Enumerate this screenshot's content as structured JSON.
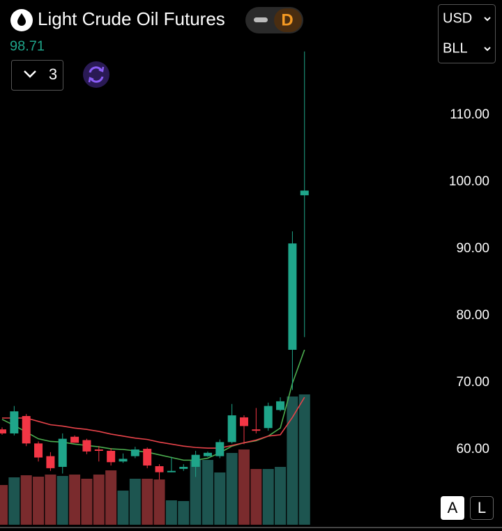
{
  "header": {
    "title": "Light Crude Oil Futures",
    "badge": "D",
    "price": "98.71",
    "interval_count": "3",
    "currency": "USD",
    "unit": "BLL",
    "buttons": [
      "A",
      "L"
    ]
  },
  "chart_data": {
    "type": "candlestick",
    "ylim": [
      48.75,
      127.19
    ],
    "yticks": [
      {
        "value": 60,
        "label": "60.00"
      },
      {
        "value": 70,
        "label": "70.00"
      },
      {
        "value": 80,
        "label": "80.00"
      },
      {
        "value": 90,
        "label": "90.00"
      },
      {
        "value": 100,
        "label": "100.00"
      },
      {
        "value": 110,
        "label": "110.00"
      }
    ],
    "up_color": "#1fa58a",
    "down_color": "#f23645",
    "open": [
      63.0,
      62.4,
      65.0,
      60.9,
      59.0,
      57.4,
      61.9,
      61.4,
      60.0,
      59.8,
      58.2,
      59.0,
      60.1,
      57.5,
      56.6,
      57.1,
      57.4,
      59.0,
      59.0,
      61.1,
      64.8,
      63.0,
      63.2,
      65.9,
      74.9,
      98.0
    ],
    "high": [
      63.3,
      66.5,
      65.3,
      61.2,
      59.6,
      62.4,
      62.1,
      61.6,
      60.5,
      60.2,
      59.4,
      60.4,
      60.3,
      57.8,
      58.9,
      57.8,
      59.8,
      59.7,
      61.5,
      66.8,
      65.1,
      66.2,
      67.0,
      67.8,
      92.6,
      119.5
    ],
    "low": [
      62.2,
      62.1,
      60.5,
      58.2,
      56.8,
      56.4,
      61.0,
      59.3,
      58.2,
      57.6,
      58.0,
      58.7,
      57.2,
      55.5,
      56.6,
      56.8,
      55.9,
      58.9,
      58.7,
      60.9,
      60.8,
      62.4,
      62.8,
      65.7,
      68.9,
      76.8
    ],
    "close": [
      62.4,
      65.7,
      60.9,
      58.8,
      57.2,
      61.6,
      61.0,
      59.7,
      59.8,
      58.1,
      58.6,
      60.0,
      57.6,
      56.6,
      56.8,
      57.4,
      59.2,
      59.5,
      61.1,
      65.1,
      63.5,
      62.9,
      66.5,
      67.2,
      90.8,
      98.7
    ],
    "volume": [
      57,
      68,
      71,
      69,
      72,
      70,
      72,
      66,
      72,
      78,
      49,
      66,
      66,
      65,
      35,
      34,
      93,
      93,
      75,
      103,
      108,
      80,
      80,
      83,
      184,
      187
    ],
    "volume_lim": [
      0,
      200
    ],
    "volume_up_color": "#1d5550",
    "volume_down_color": "#7a2b2d",
    "series": [
      {
        "color": "#4caf50",
        "values": [
          64.5,
          63.6,
          62.6,
          61.6,
          61.2,
          61.1,
          60.8,
          60.6,
          60.4,
          60.1,
          60.0,
          59.8,
          59.6,
          59.2,
          58.8,
          58.4,
          58.4,
          58.7,
          59.5,
          60.5,
          61.0,
          61.3,
          62.0,
          63.2,
          69.9,
          74.9
        ]
      },
      {
        "color": "#e8434a",
        "values": [
          64.7,
          64.7,
          64.7,
          64.2,
          63.7,
          63.5,
          63.2,
          63.0,
          62.7,
          62.3,
          62.0,
          61.7,
          61.5,
          61.1,
          60.8,
          60.5,
          60.3,
          60.2,
          60.2,
          60.6,
          61.0,
          61.4,
          62.0,
          62.2,
          64.8,
          67.8
        ]
      }
    ]
  }
}
